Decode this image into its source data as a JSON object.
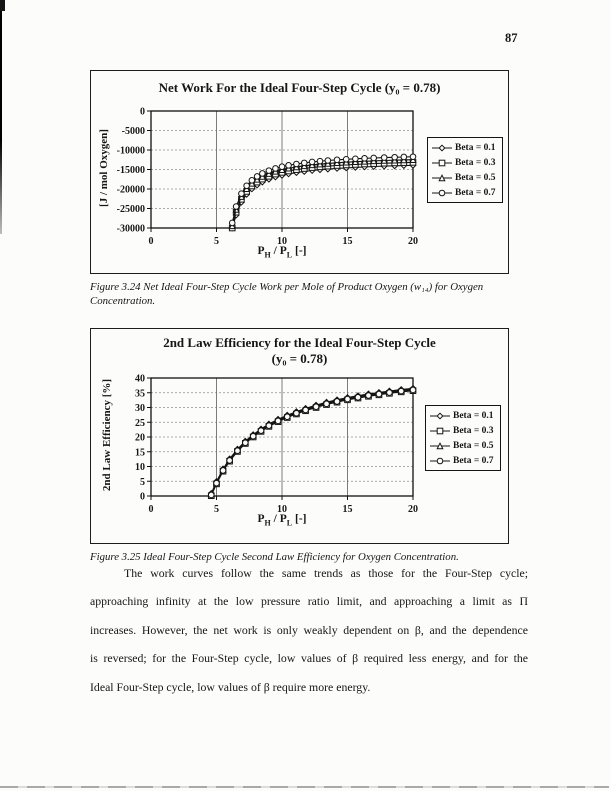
{
  "page_number": "87",
  "chart_data": [
    {
      "type": "line",
      "title": "Net Work For the Ideal Four-Step Cycle (y₀ = 0.78)",
      "subtitle": "",
      "ylabel": "[J / mol Oxygen]",
      "xlabel": {
        "p1": "P",
        "s1": "H",
        "p2": " / P",
        "s2": "L",
        "p3": " [-]"
      },
      "xlim": [
        0,
        20
      ],
      "ylim": [
        -30000,
        0
      ],
      "x_ticks": [
        0,
        5,
        10,
        15,
        20
      ],
      "y_ticks": [
        0,
        -5000,
        -10000,
        -15000,
        -20000,
        -25000,
        -30000
      ],
      "x_gridlines": [
        5,
        10,
        15
      ],
      "grid": true,
      "legend_position": "right",
      "x": [
        6.2,
        6.5,
        6.9,
        7.3,
        7.7,
        8.1,
        8.5,
        9.0,
        9.5,
        10.0,
        10.5,
        11.1,
        11.7,
        12.3,
        12.9,
        13.5,
        14.2,
        14.9,
        15.6,
        16.3,
        17.0,
        17.8,
        18.6,
        19.3,
        20.0
      ],
      "series": [
        {
          "name": "Beta = 0.1",
          "marker": "diamond",
          "values": [
            -30000,
            -26700,
            -23400,
            -21370,
            -19980,
            -18980,
            -18220,
            -17490,
            -16930,
            -16490,
            -16130,
            -15790,
            -15500,
            -15260,
            -15060,
            -14890,
            -14720,
            -14580,
            -14450,
            -14340,
            -14240,
            -14140,
            -14060,
            -13990,
            -13930
          ]
        },
        {
          "name": "Beta = 0.3",
          "marker": "square",
          "values": [
            -30000,
            -25950,
            -22650,
            -20620,
            -19230,
            -18230,
            -17470,
            -16740,
            -16180,
            -15740,
            -15380,
            -15040,
            -14750,
            -14510,
            -14310,
            -14140,
            -13970,
            -13830,
            -13700,
            -13590,
            -13490,
            -13390,
            -13310,
            -13240,
            -13180
          ]
        },
        {
          "name": "Beta = 0.5",
          "marker": "triangle",
          "values": [
            -29450,
            -25250,
            -21950,
            -19920,
            -18530,
            -17530,
            -16770,
            -16040,
            -15480,
            -15040,
            -14680,
            -14340,
            -14050,
            -13810,
            -13610,
            -13440,
            -13270,
            -13130,
            -13000,
            -12890,
            -12790,
            -12690,
            -12610,
            -12540,
            -12480
          ]
        },
        {
          "name": "Beta = 0.7",
          "marker": "circle",
          "values": [
            -28700,
            -24500,
            -21200,
            -19170,
            -17780,
            -16780,
            -16020,
            -15290,
            -14730,
            -14290,
            -13930,
            -13590,
            -13300,
            -13060,
            -12860,
            -12690,
            -12520,
            -12380,
            -12250,
            -12140,
            -12040,
            -11940,
            -11860,
            -11790,
            -11730
          ]
        }
      ]
    },
    {
      "type": "line",
      "title": "2nd Law Efficiency for the Ideal Four-Step Cycle",
      "subtitle": "(y₀ = 0.78)",
      "ylabel": "2nd Law Efficiency [%]",
      "xlabel": {
        "p1": "P",
        "s1": "H",
        "p2": " / P",
        "s2": "L",
        "p3": " [-]"
      },
      "xlim": [
        0,
        20
      ],
      "ylim": [
        0,
        40
      ],
      "x_ticks": [
        0,
        5,
        10,
        15,
        20
      ],
      "y_ticks": [
        0,
        5,
        10,
        15,
        20,
        25,
        30,
        35,
        40
      ],
      "x_gridlines": [
        5,
        10,
        15
      ],
      "grid": true,
      "legend_position": "right",
      "x": [
        4.6,
        5.0,
        5.5,
        6.0,
        6.6,
        7.2,
        7.8,
        8.4,
        9.0,
        9.7,
        10.4,
        11.1,
        11.8,
        12.6,
        13.4,
        14.2,
        15.0,
        15.8,
        16.6,
        17.4,
        18.2,
        19.1,
        20.0
      ],
      "series": [
        {
          "name": "Beta = 0.1",
          "marker": "diamond",
          "values": [
            0.9,
            4.9,
            9.2,
            12.6,
            15.9,
            18.6,
            20.8,
            22.7,
            24.4,
            26.0,
            27.4,
            28.6,
            29.7,
            30.8,
            31.8,
            32.6,
            33.4,
            34.0,
            34.6,
            35.1,
            35.6,
            36.1,
            36.5
          ]
        },
        {
          "name": "Beta = 0.3",
          "marker": "square",
          "values": [
            0.1,
            4.1,
            8.4,
            11.8,
            15.1,
            17.8,
            20.0,
            21.9,
            23.6,
            25.2,
            26.6,
            27.8,
            28.9,
            30.0,
            31.0,
            31.8,
            32.6,
            33.2,
            33.8,
            34.3,
            34.8,
            35.3,
            35.7
          ]
        },
        {
          "name": "Beta = 0.5",
          "marker": "triangle",
          "values": [
            0.65,
            4.65,
            8.95,
            12.35,
            15.65,
            18.35,
            20.55,
            22.45,
            24.15,
            25.75,
            27.15,
            28.35,
            29.45,
            30.55,
            31.55,
            32.35,
            33.15,
            33.75,
            34.35,
            34.85,
            35.35,
            35.85,
            36.25
          ]
        },
        {
          "name": "Beta = 0.7",
          "marker": "circle",
          "values": [
            0.35,
            4.35,
            8.65,
            12.05,
            15.35,
            18.05,
            20.25,
            22.15,
            23.85,
            25.45,
            26.85,
            28.05,
            29.15,
            30.25,
            31.25,
            32.05,
            32.85,
            33.45,
            34.05,
            34.55,
            35.05,
            35.55,
            35.95
          ]
        }
      ]
    }
  ],
  "captions": [
    {
      "line1": "Figure 3.24  Net Ideal Four-Step Cycle Work per Mole of Product Oxygen (w₁₄) for Oxygen",
      "line2": "Concentration."
    },
    {
      "line1": "Figure 3.25 Ideal Four-Step Cycle Second Law Efficiency for Oxygen Concentration.",
      "line2": ""
    }
  ],
  "paragraph": [
    "The work curves follow the same trends as those for the Four-Step cycle;",
    "approaching infinity at the low pressure ratio limit, and approaching a limit as Π",
    "increases.  However, the net work is only weakly dependent on β, and the dependence",
    "is reversed; for the Four-Step cycle, low values of β required less energy, and for the",
    "Ideal Four-Step cycle, low values of β require more energy."
  ]
}
